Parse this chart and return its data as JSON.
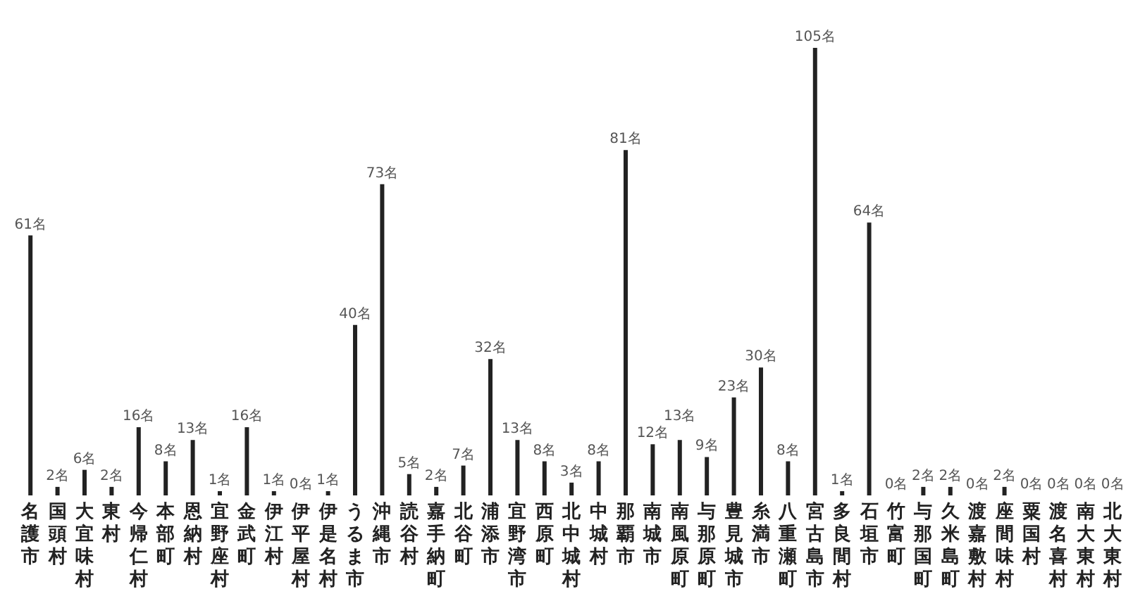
{
  "chart_data": {
    "type": "bar",
    "categories": [
      "名護市",
      "国頭村",
      "大宜味村",
      "東村",
      "今帰仁村",
      "本部町",
      "恩納村",
      "宜野座村",
      "金武町",
      "伊江村",
      "伊平屋村",
      "伊是名村",
      "うるま市",
      "沖縄市",
      "読谷村",
      "嘉手納町",
      "北谷町",
      "浦添市",
      "宜野湾市",
      "西原町",
      "北中城村",
      "中城村",
      "那覇市",
      "南城市",
      "南風原町",
      "与那原町",
      "豊見城市",
      "糸満市",
      "八重瀬町",
      "宮古島市",
      "多良間村",
      "石垣市",
      "竹富町",
      "与那国町",
      "久米島町",
      "渡嘉敷村",
      "座間味村",
      "粟国村",
      "渡名喜村",
      "南大東村",
      "北大東村"
    ],
    "values": [
      61,
      2,
      6,
      2,
      16,
      8,
      13,
      1,
      16,
      1,
      0,
      1,
      40,
      73,
      5,
      2,
      7,
      32,
      13,
      8,
      3,
      8,
      81,
      12,
      13,
      9,
      23,
      30,
      8,
      105,
      1,
      64,
      0,
      2,
      2,
      0,
      2,
      0,
      0,
      0,
      0
    ],
    "value_labels": [
      "61名",
      "2名",
      "6名",
      "2名",
      "16名",
      "8名",
      "13名",
      "1名",
      "16名",
      "1名",
      "0名",
      "1名",
      "40名",
      "73名",
      "5名",
      "2名",
      "7名",
      "32名",
      "13名",
      "8名",
      "3名",
      "8名",
      "81名",
      "12名",
      "13名",
      "9名",
      "23名",
      "30名",
      "8名",
      "105名",
      "1名",
      "64名",
      "0名",
      "2名",
      "2名",
      "0名",
      "2名",
      "0名",
      "0名",
      "0名",
      "0名"
    ],
    "color": "#222222",
    "tick_labels": "x"
  }
}
